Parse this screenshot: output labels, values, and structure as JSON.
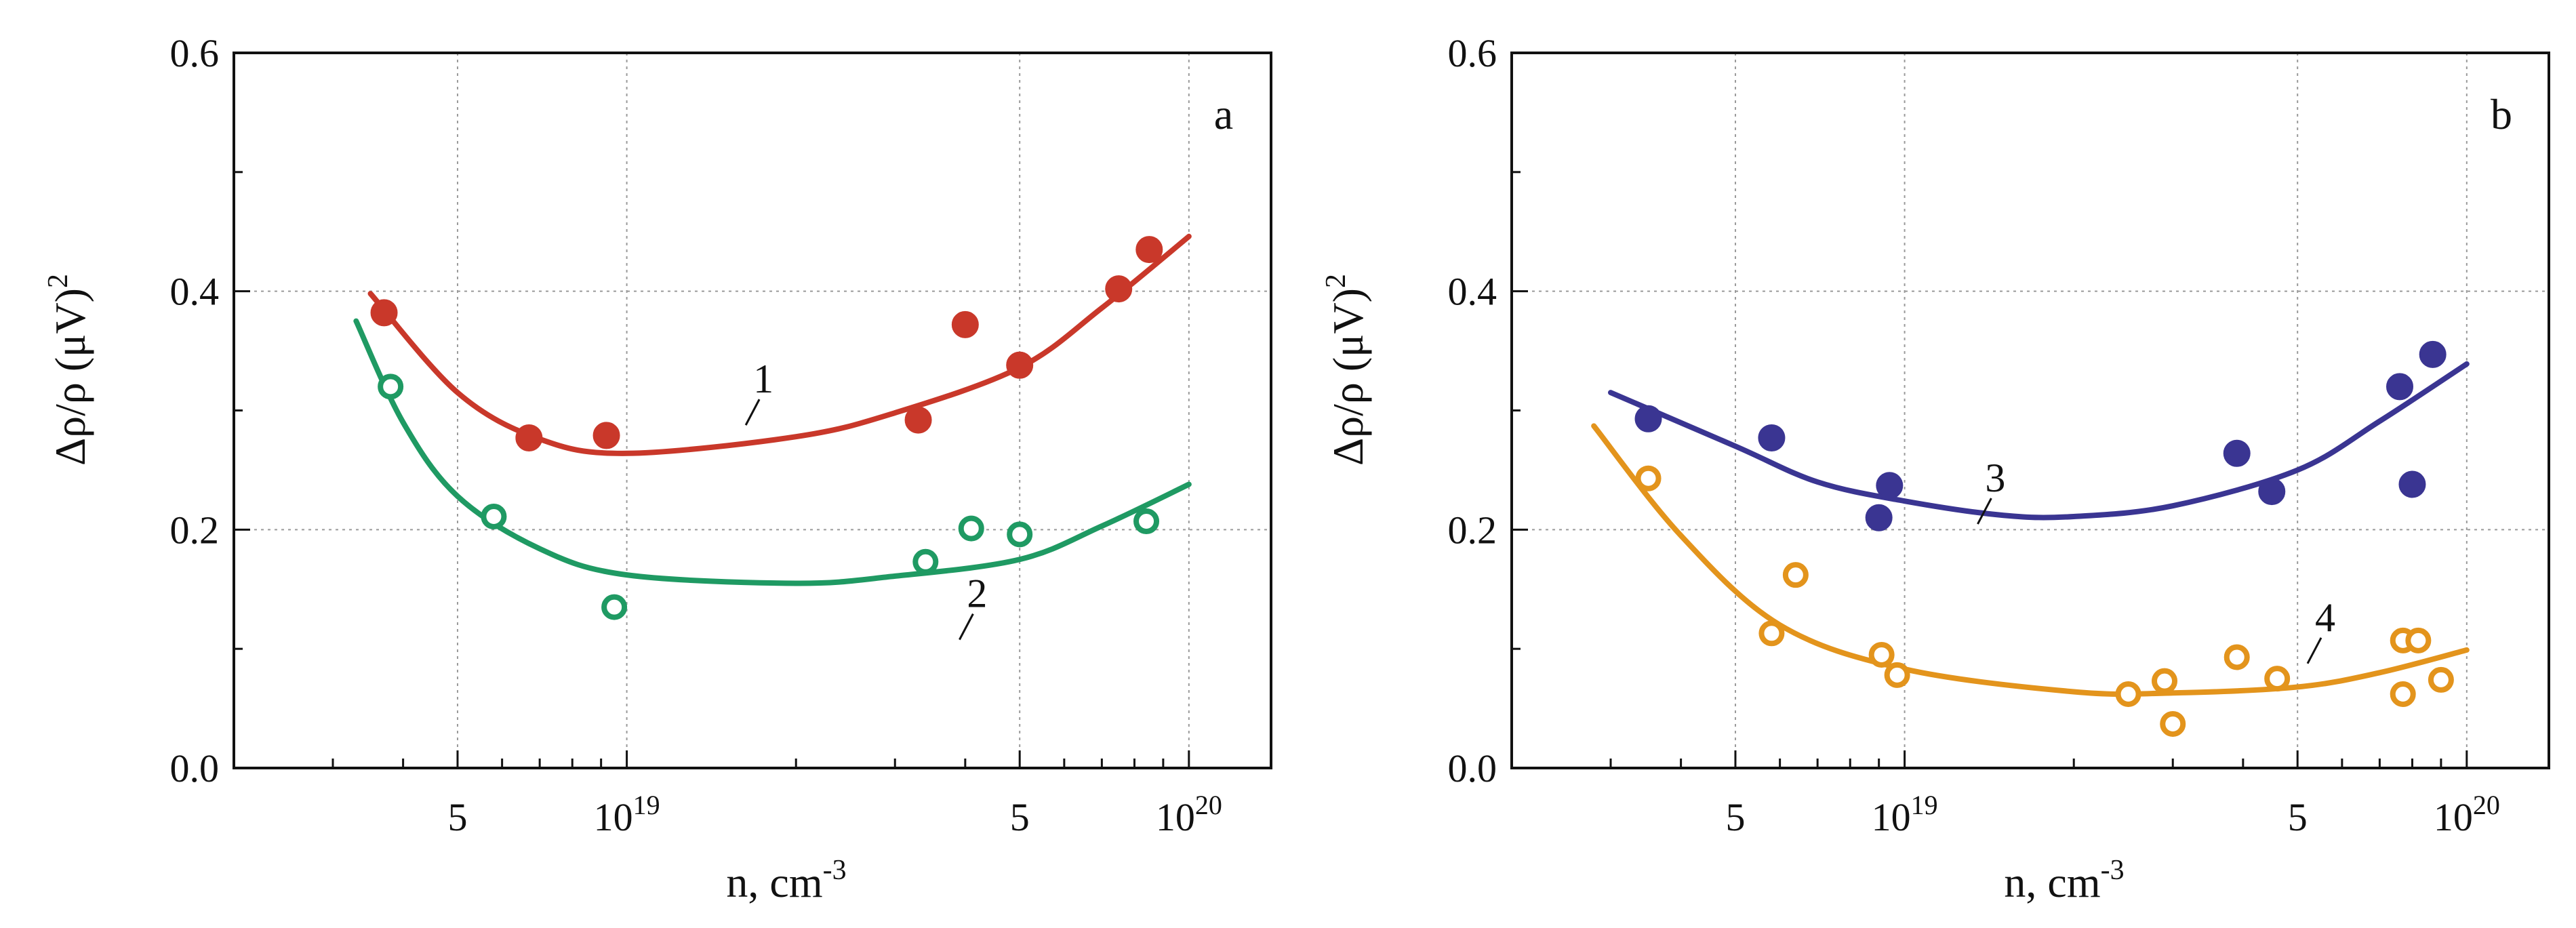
{
  "chart_data": [
    {
      "type": "scatter",
      "panel_label": "a",
      "xlabel": "n, cm",
      "xlabel_sup": "-3",
      "ylabel": "Δρ/ρ (μV)",
      "ylabel_sup": "2",
      "xscale": "log",
      "xlim": [
        2e+18,
        1.4e+20
      ],
      "ylim": [
        0.0,
        0.6
      ],
      "grid": true,
      "x_ticks": [
        {
          "value": 5e+18,
          "base": "5",
          "sup": ""
        },
        {
          "value": 1e+19,
          "base": "10",
          "sup": "19"
        },
        {
          "value": 5e+19,
          "base": "5",
          "sup": ""
        },
        {
          "value": 1e+20,
          "base": "10",
          "sup": "20"
        }
      ],
      "y_ticks": [
        {
          "value": 0.0,
          "label": "0.0"
        },
        {
          "value": 0.2,
          "label": "0.2"
        },
        {
          "value": 0.4,
          "label": "0.4"
        },
        {
          "value": 0.6,
          "label": "0.6"
        }
      ],
      "series": [
        {
          "name": "1",
          "color": "#c9382a",
          "marker": "filled",
          "points": [
            {
              "x": 3.7e+18,
              "y": 0.382
            },
            {
              "x": 6.7e+18,
              "y": 0.277
            },
            {
              "x": 9.2e+18,
              "y": 0.279
            },
            {
              "x": 3.3e+19,
              "y": 0.292
            },
            {
              "x": 4e+19,
              "y": 0.372
            },
            {
              "x": 5e+19,
              "y": 0.338
            },
            {
              "x": 7.5e+19,
              "y": 0.402
            },
            {
              "x": 8.5e+19,
              "y": 0.435
            }
          ],
          "fit": [
            {
              "x": 3.5e+18,
              "y": 0.398
            },
            {
              "x": 5e+18,
              "y": 0.315
            },
            {
              "x": 7e+18,
              "y": 0.276
            },
            {
              "x": 1e+19,
              "y": 0.264
            },
            {
              "x": 2e+19,
              "y": 0.278
            },
            {
              "x": 3e+19,
              "y": 0.298
            },
            {
              "x": 5e+19,
              "y": 0.336
            },
            {
              "x": 7e+19,
              "y": 0.386
            },
            {
              "x": 1e+20,
              "y": 0.446
            }
          ],
          "label_at": {
            "x": 1.75e+19,
            "y": 0.315
          }
        },
        {
          "name": "2",
          "color": "#1f9a63",
          "marker": "open",
          "points": [
            {
              "x": 3.8e+18,
              "y": 0.32
            },
            {
              "x": 5.8e+18,
              "y": 0.211
            },
            {
              "x": 9.5e+18,
              "y": 0.135
            },
            {
              "x": 3.4e+19,
              "y": 0.173
            },
            {
              "x": 4.1e+19,
              "y": 0.201
            },
            {
              "x": 5e+19,
              "y": 0.196
            },
            {
              "x": 8.4e+19,
              "y": 0.207
            }
          ],
          "fit": [
            {
              "x": 3.3e+18,
              "y": 0.375
            },
            {
              "x": 4e+18,
              "y": 0.29
            },
            {
              "x": 5e+18,
              "y": 0.228
            },
            {
              "x": 7e+18,
              "y": 0.184
            },
            {
              "x": 1e+19,
              "y": 0.162
            },
            {
              "x": 2e+19,
              "y": 0.155
            },
            {
              "x": 3e+19,
              "y": 0.161
            },
            {
              "x": 5e+19,
              "y": 0.175
            },
            {
              "x": 7e+19,
              "y": 0.203
            },
            {
              "x": 1e+20,
              "y": 0.238
            }
          ],
          "label_at": {
            "x": 4.2e+19,
            "y": 0.135
          }
        }
      ]
    },
    {
      "type": "scatter",
      "panel_label": "b",
      "xlabel": "n, cm",
      "xlabel_sup": "-3",
      "ylabel": "Δρ/ρ (μV)",
      "ylabel_sup": "2",
      "xscale": "log",
      "xlim": [
        2e+18,
        1.4e+20
      ],
      "ylim": [
        0.0,
        0.6
      ],
      "grid": true,
      "x_ticks": [
        {
          "value": 5e+18,
          "base": "5",
          "sup": ""
        },
        {
          "value": 1e+19,
          "base": "10",
          "sup": "19"
        },
        {
          "value": 5e+19,
          "base": "5",
          "sup": ""
        },
        {
          "value": 1e+20,
          "base": "10",
          "sup": "20"
        }
      ],
      "y_ticks": [
        {
          "value": 0.0,
          "label": "0.0"
        },
        {
          "value": 0.2,
          "label": "0.2"
        },
        {
          "value": 0.4,
          "label": "0.4"
        },
        {
          "value": 0.6,
          "label": "0.6"
        }
      ],
      "series": [
        {
          "name": "3",
          "color": "#3a3592",
          "marker": "filled",
          "points": [
            {
              "x": 3.5e+18,
              "y": 0.293
            },
            {
              "x": 5.8e+18,
              "y": 0.277
            },
            {
              "x": 9e+18,
              "y": 0.21
            },
            {
              "x": 9.4e+18,
              "y": 0.237
            },
            {
              "x": 3.9e+19,
              "y": 0.264
            },
            {
              "x": 4.5e+19,
              "y": 0.232
            },
            {
              "x": 7.6e+19,
              "y": 0.32
            },
            {
              "x": 8e+19,
              "y": 0.238
            },
            {
              "x": 8.7e+19,
              "y": 0.347
            }
          ],
          "fit": [
            {
              "x": 3e+18,
              "y": 0.315
            },
            {
              "x": 5e+18,
              "y": 0.27
            },
            {
              "x": 7e+18,
              "y": 0.24
            },
            {
              "x": 1e+19,
              "y": 0.224
            },
            {
              "x": 1.5e+19,
              "y": 0.212
            },
            {
              "x": 2e+19,
              "y": 0.211
            },
            {
              "x": 3e+19,
              "y": 0.22
            },
            {
              "x": 5e+19,
              "y": 0.25
            },
            {
              "x": 7e+19,
              "y": 0.291
            },
            {
              "x": 1e+20,
              "y": 0.339
            }
          ],
          "label_at": {
            "x": 1.45e+19,
            "y": 0.232
          }
        },
        {
          "name": "4",
          "color": "#e3941c",
          "marker": "open",
          "points": [
            {
              "x": 3.5e+18,
              "y": 0.243
            },
            {
              "x": 5.8e+18,
              "y": 0.113
            },
            {
              "x": 6.4e+18,
              "y": 0.162
            },
            {
              "x": 9.1e+18,
              "y": 0.095
            },
            {
              "x": 9.7e+18,
              "y": 0.078
            },
            {
              "x": 2.5e+19,
              "y": 0.062
            },
            {
              "x": 2.9e+19,
              "y": 0.073
            },
            {
              "x": 3e+19,
              "y": 0.037
            },
            {
              "x": 3.9e+19,
              "y": 0.093
            },
            {
              "x": 4.6e+19,
              "y": 0.075
            },
            {
              "x": 7.7e+19,
              "y": 0.107
            },
            {
              "x": 8.2e+19,
              "y": 0.107
            },
            {
              "x": 7.7e+19,
              "y": 0.062
            },
            {
              "x": 9e+19,
              "y": 0.074
            }
          ],
          "fit": [
            {
              "x": 2.8e+18,
              "y": 0.287
            },
            {
              "x": 4e+18,
              "y": 0.195
            },
            {
              "x": 6e+18,
              "y": 0.12
            },
            {
              "x": 1e+19,
              "y": 0.083
            },
            {
              "x": 2e+19,
              "y": 0.064
            },
            {
              "x": 3e+19,
              "y": 0.063
            },
            {
              "x": 5e+19,
              "y": 0.068
            },
            {
              "x": 7e+19,
              "y": 0.08
            },
            {
              "x": 1e+20,
              "y": 0.099
            }
          ],
          "label_at": {
            "x": 5.6e+19,
            "y": 0.115
          }
        }
      ]
    }
  ]
}
